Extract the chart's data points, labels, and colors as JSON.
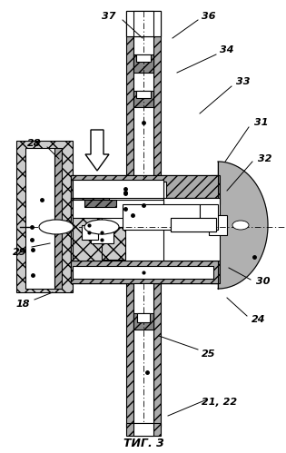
{
  "bg_color": "#ffffff",
  "lc": "#000000",
  "title": "ΤИГ. 3",
  "gray_light": "#c8c8c8",
  "gray_med": "#aaaaaa",
  "gray_cross": "#bbbbbb",
  "lw": 0.8
}
